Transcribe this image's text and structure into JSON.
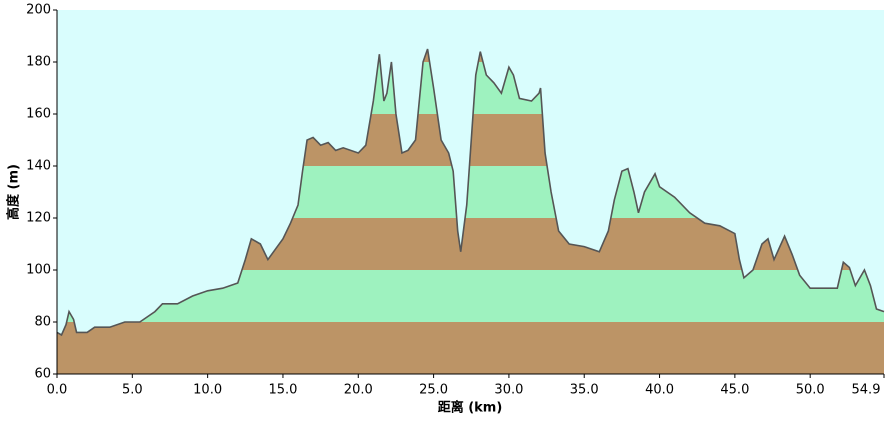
{
  "chart_data": {
    "type": "area",
    "xlabel": "距离 (km)",
    "ylabel": "高度 (m)",
    "x": [
      0.0,
      0.3,
      0.6,
      0.8,
      1.1,
      1.3,
      2.0,
      2.5,
      3.5,
      4.5,
      5.5,
      6.5,
      7.0,
      8.0,
      9.0,
      10.0,
      11.0,
      12.0,
      12.5,
      12.9,
      13.5,
      14.0,
      14.5,
      15.0,
      15.5,
      16.0,
      16.3,
      16.6,
      17.0,
      17.5,
      18.0,
      18.5,
      19.0,
      20.0,
      20.5,
      21.0,
      21.4,
      21.7,
      21.9,
      22.2,
      22.5,
      22.9,
      23.3,
      23.8,
      24.3,
      24.6,
      25.0,
      25.5,
      26.0,
      26.3,
      26.6,
      26.8,
      27.2,
      27.5,
      27.8,
      28.1,
      28.5,
      29.0,
      29.5,
      30.0,
      30.3,
      30.7,
      31.5,
      32.0,
      32.1,
      32.4,
      32.8,
      33.3,
      34.0,
      35.0,
      36.0,
      36.6,
      37.0,
      37.5,
      37.9,
      38.3,
      38.6,
      39.0,
      39.7,
      40.0,
      41.0,
      42.0,
      43.0,
      44.0,
      45.0,
      45.3,
      45.6,
      46.2,
      46.8,
      47.2,
      47.6,
      48.3,
      48.8,
      49.3,
      50.0,
      51.0,
      51.8,
      52.2,
      52.6,
      53.0,
      53.6,
      54.0,
      54.4,
      54.9
    ],
    "values": [
      76,
      75,
      79,
      84,
      81,
      76,
      76,
      78,
      78,
      80,
      80,
      84,
      87,
      87,
      90,
      92,
      93,
      95,
      104,
      112,
      110,
      104,
      108,
      112,
      118,
      125,
      138,
      150,
      151,
      148,
      149,
      146,
      147,
      145,
      148,
      165,
      183,
      165,
      168,
      180,
      160,
      145,
      146,
      150,
      180,
      185,
      170,
      150,
      145,
      138,
      115,
      107,
      125,
      150,
      175,
      184,
      175,
      172,
      168,
      178,
      175,
      166,
      165,
      168,
      170,
      145,
      130,
      115,
      110,
      109,
      107,
      115,
      127,
      138,
      139,
      130,
      122,
      130,
      137,
      132,
      128,
      122,
      118,
      117,
      114,
      104,
      97,
      100,
      110,
      112,
      104,
      113,
      106,
      98,
      93,
      93,
      93,
      103,
      101,
      94,
      100,
      94,
      85,
      84
    ],
    "xlim": [
      0,
      54.9
    ],
    "ylim": [
      60,
      200
    ],
    "xticks": [
      {
        "value": 0,
        "label": "0.0"
      },
      {
        "value": 5,
        "label": "5.0"
      },
      {
        "value": 10,
        "label": "10.0"
      },
      {
        "value": 15,
        "label": "15.0"
      },
      {
        "value": 20,
        "label": "20.0"
      },
      {
        "value": 25,
        "label": "25.0"
      },
      {
        "value": 30,
        "label": "30.0"
      },
      {
        "value": 35,
        "label": "35.0"
      },
      {
        "value": 40,
        "label": "40.0"
      },
      {
        "value": 45,
        "label": "45.0"
      },
      {
        "value": 50,
        "label": "50.0"
      },
      54.9
    ],
    "yticks": [
      60,
      80,
      100,
      120,
      140,
      160,
      180,
      200
    ],
    "band_colors": [
      "#bc9466",
      "#9ef2bf"
    ],
    "line_color": "#555555",
    "background": "#d9fdfd"
  }
}
